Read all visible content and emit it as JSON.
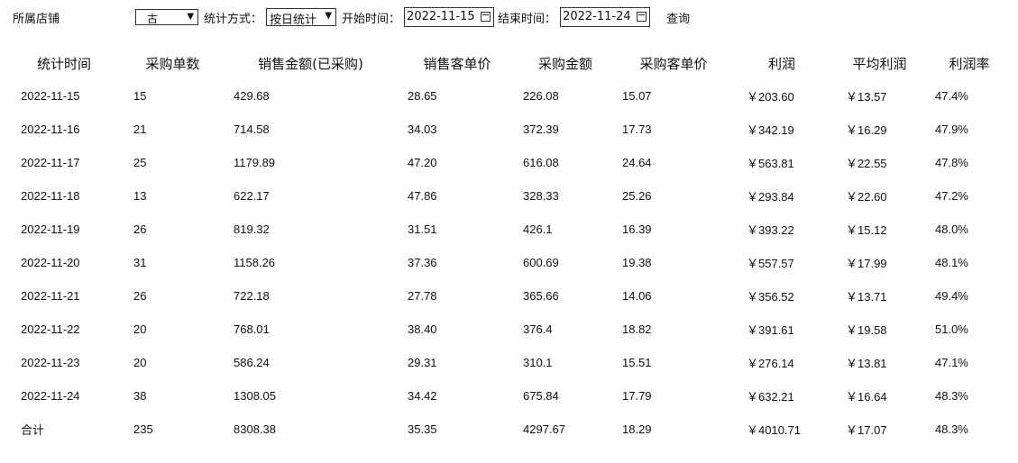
{
  "toolbar": {
    "store_label": "所属店铺",
    "store_value": "古",
    "mode_label": "统计方式：",
    "mode_value": "按日统计",
    "start_label": "开始时间：",
    "start_value": "2022-11-15",
    "end_label": "结束时间：",
    "end_value": "2022-11-24",
    "query_label": "查询"
  },
  "table": {
    "headers": [
      "统计时间",
      "采购单数",
      "销售金额(已采购)",
      "销售客单价",
      "采购金额",
      "采购客单价",
      "利润",
      "平均利润",
      "利润率"
    ],
    "rows": [
      [
        "2022-11-15",
        "15",
        "429.68",
        "28.65",
        "226.08",
        "15.07",
        "￥203.60",
        "￥13.57",
        "47.4%"
      ],
      [
        "2022-11-16",
        "21",
        "714.58",
        "34.03",
        "372.39",
        "17.73",
        "￥342.19",
        "￥16.29",
        "47.9%"
      ],
      [
        "2022-11-17",
        "25",
        "1179.89",
        "47.20",
        "616.08",
        "24.64",
        "￥563.81",
        "￥22.55",
        "47.8%"
      ],
      [
        "2022-11-18",
        "13",
        "622.17",
        "47.86",
        "328.33",
        "25.26",
        "￥293.84",
        "￥22.60",
        "47.2%"
      ],
      [
        "2022-11-19",
        "26",
        "819.32",
        "31.51",
        "426.1",
        "16.39",
        "￥393.22",
        "￥15.12",
        "48.0%"
      ],
      [
        "2022-11-20",
        "31",
        "1158.26",
        "37.36",
        "600.69",
        "19.38",
        "￥557.57",
        "￥17.99",
        "48.1%"
      ],
      [
        "2022-11-21",
        "26",
        "722.18",
        "27.78",
        "365.66",
        "14.06",
        "￥356.52",
        "￥13.71",
        "49.4%"
      ],
      [
        "2022-11-22",
        "20",
        "768.01",
        "38.40",
        "376.4",
        "18.82",
        "￥391.61",
        "￥19.58",
        "51.0%"
      ],
      [
        "2022-11-23",
        "20",
        "586.24",
        "29.31",
        "310.1",
        "15.51",
        "￥276.14",
        "￥13.81",
        "47.1%"
      ],
      [
        "2022-11-24",
        "38",
        "1308.05",
        "34.42",
        "675.84",
        "17.79",
        "￥632.21",
        "￥16.64",
        "48.3%"
      ],
      [
        "合计",
        "235",
        "8308.38",
        "35.35",
        "4297.67",
        "18.29",
        "￥4010.71",
        "￥17.07",
        "48.3%"
      ]
    ]
  }
}
